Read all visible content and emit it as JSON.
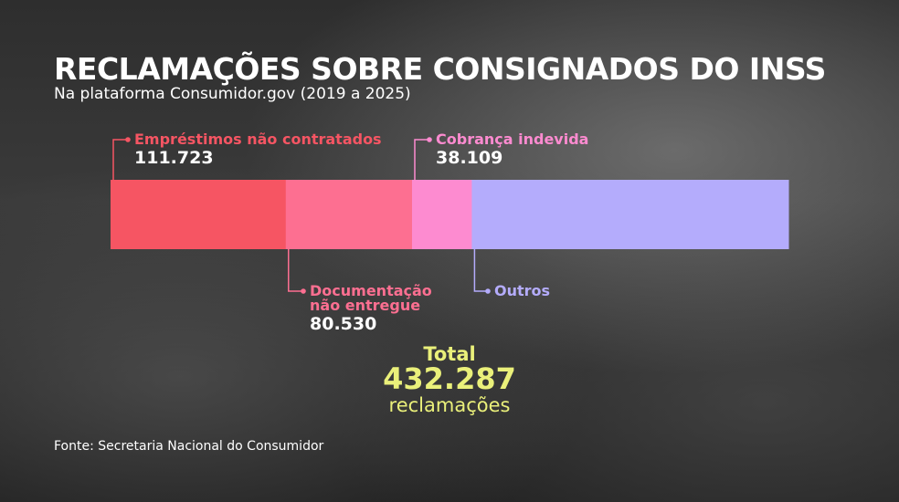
{
  "header": {
    "title": "RECLAMAÇÕES SOBRE CONSIGNADOS DO INSS",
    "subtitle": "Na plataforma Consumidor.gov (2019 a 2025)"
  },
  "chart_data": {
    "type": "bar",
    "orientation": "horizontal-stacked",
    "title": "RECLAMAÇÕES SOBRE CONSIGNADOS DO INSS",
    "subtitle": "Na plataforma Consumidor.gov (2019 a 2025)",
    "series": [
      {
        "name": "Empréstimos não contratados",
        "value": 111723,
        "label": "111.723",
        "color": "#f65563"
      },
      {
        "name": "Documentação não entregue",
        "value": 80530,
        "label": "80.530",
        "color": "#fd6f91"
      },
      {
        "name": "Cobrança indevida",
        "value": 38109,
        "label": "38.109",
        "color": "#fd8bd0"
      },
      {
        "name": "Outros",
        "value": 201925,
        "label": "",
        "color": "#b4acfc"
      }
    ],
    "total": {
      "label": "Total",
      "value": "432.287",
      "unit": "reclamações"
    }
  },
  "source": "Fonte: Secretaria Nacional do Consumidor"
}
